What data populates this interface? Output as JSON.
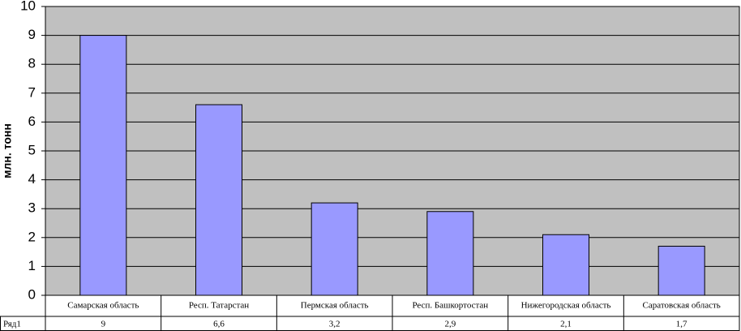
{
  "chart_data": {
    "type": "bar",
    "y_label": "млн. тонн",
    "categories": [
      "Самарская область",
      "Респ. Татарстан",
      "Пермская область",
      "Респ. Башкортостан",
      "Нижегородская область",
      "Саратовская область"
    ],
    "series": [
      {
        "name": "Ряд1",
        "color": "#9999ff",
        "values": [
          9,
          6.6,
          3.2,
          2.9,
          2.1,
          1.7
        ],
        "value_labels": [
          "9",
          "6,6",
          "3,2",
          "2,9",
          "2,1",
          "1,7"
        ]
      }
    ],
    "ylim": [
      0,
      10
    ],
    "yticks": [
      0,
      1,
      2,
      3,
      4,
      5,
      6,
      7,
      8,
      9,
      10
    ],
    "grid": true,
    "background": "#c0c0c0"
  }
}
